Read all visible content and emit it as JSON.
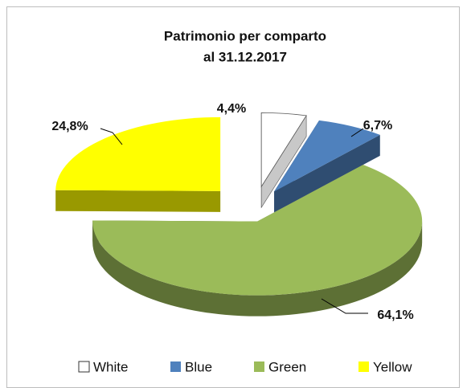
{
  "chart_data": {
    "type": "pie3d",
    "title": "Patrimonio per comparto",
    "subtitle": "al  31.12.2017",
    "categories": [
      "White",
      "Blue",
      "Green",
      "Yellow"
    ],
    "values": [
      4.4,
      6.7,
      64.1,
      24.8
    ],
    "value_labels": [
      "4,4%",
      "6,7%",
      "64,1%",
      "24,8%"
    ],
    "colors": [
      "#ffffff",
      "#4f81bd",
      "#9bbb59",
      "#ffff00"
    ],
    "legend": "bottom"
  }
}
